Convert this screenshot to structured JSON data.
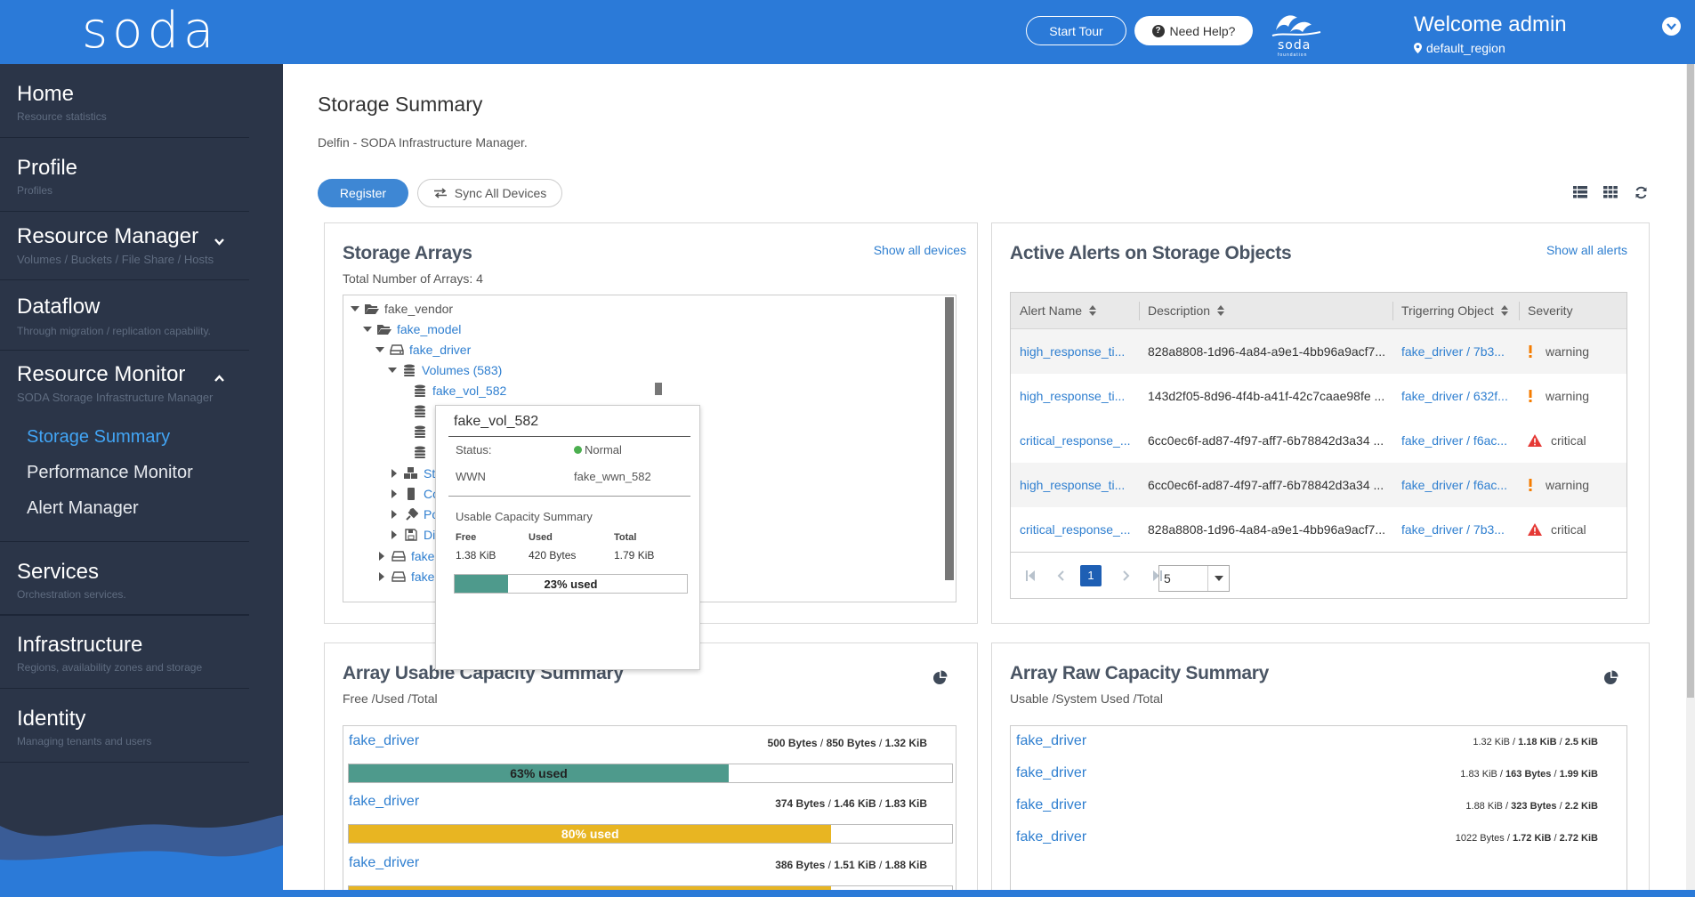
{
  "header": {
    "logo": "soda",
    "start_tour": "Start Tour",
    "need_help": "Need Help?",
    "foundation_logo_text": "soda",
    "foundation_logo_sub": "foundation",
    "welcome": "Welcome admin",
    "region": "default_region"
  },
  "sidebar": {
    "items": [
      {
        "title": "Home",
        "subtitle": "Resource statistics"
      },
      {
        "title": "Profile",
        "subtitle": "Profiles"
      },
      {
        "title": "Resource Manager",
        "subtitle": "Volumes / Buckets / File Share / Hosts"
      },
      {
        "title": "Dataflow",
        "subtitle": "Through migration / replication capability."
      },
      {
        "title": "Resource Monitor",
        "subtitle": "SODA Storage Infrastructure Manager"
      },
      {
        "title": "Services",
        "subtitle": "Orchestration services."
      },
      {
        "title": "Infrastructure",
        "subtitle": "Regions, availability zones and storage"
      },
      {
        "title": "Identity",
        "subtitle": "Managing tenants and users"
      }
    ],
    "monitor_sub": [
      "Storage Summary",
      "Performance Monitor",
      "Alert Manager"
    ],
    "active_sub": "Storage Summary"
  },
  "page": {
    "title": "Storage Summary",
    "description": "Delfin - SODA Infrastructure Manager.",
    "register": "Register",
    "sync": "Sync All Devices"
  },
  "storage_arrays": {
    "title": "Storage Arrays",
    "subtitle": "Total Number of Arrays: 4",
    "link": "Show all devices",
    "tree": {
      "vendor": "fake_vendor",
      "model": "fake_model",
      "driver": "fake_driver",
      "volumes": "Volumes (583)",
      "vol": "fake_vol_582",
      "st": "St",
      "co": "Co",
      "po": "Po",
      "di": "Di",
      "fake1": "fake",
      "fake2": "fake"
    }
  },
  "tooltip": {
    "title": "fake_vol_582",
    "status_label": "Status:",
    "status_value": "Normal",
    "wwn_label": "WWN",
    "wwn_value": "fake_wwn_582",
    "cap_title": "Usable Capacity Summary",
    "free_label": "Free",
    "free_value": "1.38 KiB",
    "used_label": "Used",
    "used_value": "420 Bytes",
    "total_label": "Total",
    "total_value": "1.79 KiB",
    "used_pct": 23,
    "used_text": "23% used"
  },
  "alerts": {
    "title": "Active Alerts on Storage Objects",
    "link": "Show all alerts",
    "columns": [
      "Alert Name",
      "Description",
      "Trigerring Object",
      "Severity"
    ],
    "rows": [
      {
        "name": "high_response_ti...",
        "desc": "828a8808-1d96-4a84-a9e1-4bb96a9acf7...",
        "object": "fake_driver / 7b3...",
        "severity": "warning"
      },
      {
        "name": "high_response_ti...",
        "desc": "143d2f05-8d96-4f4b-a41f-42c7caae98fe ...",
        "object": "fake_driver / 632f...",
        "severity": "warning"
      },
      {
        "name": "critical_response_...",
        "desc": "6cc0ec6f-ad87-4f97-aff7-6b78842d3a34 ...",
        "object": "fake_driver / f6ac...",
        "severity": "critical"
      },
      {
        "name": "high_response_ti...",
        "desc": "6cc0ec6f-ad87-4f97-aff7-6b78842d3a34 ...",
        "object": "fake_driver / f6ac...",
        "severity": "warning"
      },
      {
        "name": "critical_response_...",
        "desc": "828a8808-1d96-4a84-a9e1-4bb96a9acf7...",
        "object": "fake_driver / 7b3...",
        "severity": "critical"
      }
    ],
    "page": "1",
    "rows_per_page": "5"
  },
  "usable_capacity": {
    "title": "Array Usable Capacity Summary",
    "subtitle": "Free /Used /Total",
    "items": [
      {
        "name": "fake_driver",
        "free": "500 Bytes",
        "used": "850 Bytes",
        "total": "1.32 KiB",
        "pct": 63,
        "label": "63% used",
        "color": "#4e9a8c"
      },
      {
        "name": "fake_driver",
        "free": "374 Bytes",
        "used": "1.46 KiB",
        "total": "1.83 KiB",
        "pct": 80,
        "label": "80% used",
        "color": "#e8b522"
      },
      {
        "name": "fake_driver",
        "free": "386 Bytes",
        "used": "1.51 KiB",
        "total": "1.88 KiB",
        "pct": 80,
        "label": "",
        "color": "#e8b522"
      }
    ]
  },
  "raw_capacity": {
    "title": "Array Raw Capacity Summary",
    "subtitle": "Usable /System Used /Total",
    "items": [
      {
        "name": "fake_driver",
        "usable": "1.32 KiB",
        "system": "1.18 KiB",
        "total": "2.5 KiB"
      },
      {
        "name": "fake_driver",
        "usable": "1.83 KiB",
        "system": "163 Bytes",
        "total": "1.99 KiB"
      },
      {
        "name": "fake_driver",
        "usable": "1.88 KiB",
        "system": "323 Bytes",
        "total": "2.2 KiB"
      },
      {
        "name": "fake_driver",
        "usable": "1022 Bytes",
        "system": "1.72 KiB",
        "total": "2.72 KiB"
      }
    ]
  },
  "colors": {
    "header": "#2b7ad8",
    "sidebar": "#2b3548",
    "accent": "#42a5f5",
    "teal": "#4e9a8c",
    "amber": "#e8b522",
    "critical": "#e53935",
    "warning": "#f57c00"
  }
}
